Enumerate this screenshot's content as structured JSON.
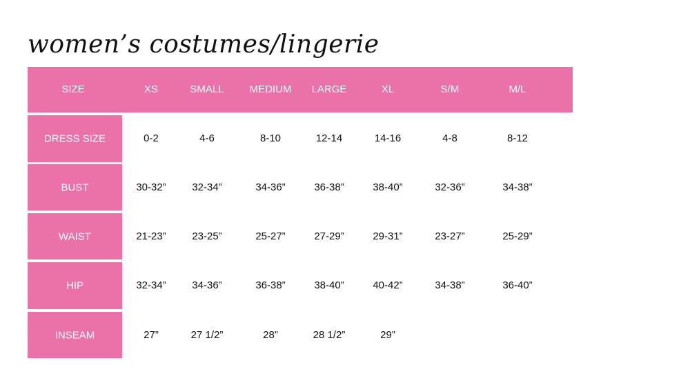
{
  "title": "women’s costumes/lingerie",
  "accent_color": "#ea72a8",
  "header": [
    "SIZE",
    "XS",
    "SMALL",
    "MEDIUM",
    "LARGE",
    "XL",
    "S/M",
    "M/L"
  ],
  "rows": [
    {
      "label": "DRESS SIZE",
      "values": [
        "0-2",
        "4-6",
        "8-10",
        "12-14",
        "14-16",
        "4-8",
        "8-12"
      ]
    },
    {
      "label": "BUST",
      "values": [
        "30-32”",
        "32-34”",
        "34-36”",
        "36-38”",
        "38-40”",
        "32-36”",
        "34-38”"
      ]
    },
    {
      "label": "WAIST",
      "values": [
        "21-23”",
        "23-25”",
        "25-27”",
        "27-29”",
        "29-31”",
        "23-27”",
        "25-29”"
      ]
    },
    {
      "label": "HIP",
      "values": [
        "32-34”",
        "34-36”",
        "36-38”",
        "38-40”",
        "40-42”",
        "34-38”",
        "36-40”"
      ]
    },
    {
      "label": "INSEAM",
      "values": [
        "27”",
        "27 1/2”",
        "28”",
        "28 1/2”",
        "29”"
      ]
    }
  ]
}
